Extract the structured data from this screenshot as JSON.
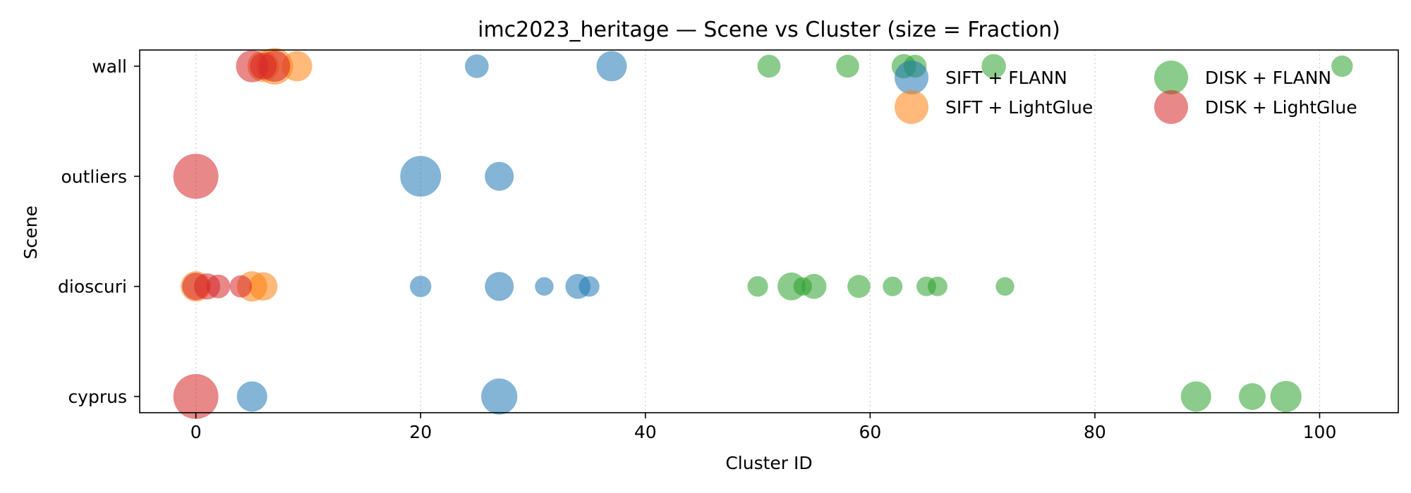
{
  "chart_data": {
    "type": "scatter",
    "title": "imc2023_heritage — Scene vs Cluster (size = Fraction)",
    "xlabel": "Cluster ID",
    "ylabel": "Scene",
    "xlim": [
      -5,
      107
    ],
    "x_ticks": [
      0,
      20,
      40,
      60,
      80,
      100
    ],
    "y_categories": [
      "cyprus",
      "dioscuri",
      "outliers",
      "wall"
    ],
    "grid": "vertical dotted",
    "legend_placement": "top-right",
    "series": [
      {
        "name": "SIFT + FLANN",
        "color": "#1f77b4",
        "points": [
          {
            "x": 25,
            "y": "wall",
            "size": 0.1
          },
          {
            "x": 37,
            "y": "wall",
            "size": 0.22
          },
          {
            "x": 20,
            "y": "outliers",
            "size": 0.5
          },
          {
            "x": 27,
            "y": "outliers",
            "size": 0.19
          },
          {
            "x": 20,
            "y": "dioscuri",
            "size": 0.07
          },
          {
            "x": 27,
            "y": "dioscuri",
            "size": 0.19
          },
          {
            "x": 31,
            "y": "dioscuri",
            "size": 0.04
          },
          {
            "x": 34,
            "y": "dioscuri",
            "size": 0.12
          },
          {
            "x": 35,
            "y": "dioscuri",
            "size": 0.06
          },
          {
            "x": 5,
            "y": "cyprus",
            "size": 0.22
          },
          {
            "x": 27,
            "y": "cyprus",
            "size": 0.36
          }
        ]
      },
      {
        "name": "SIFT + LightGlue",
        "color": "#ff7f0e",
        "points": [
          {
            "x": 6,
            "y": "wall",
            "size": 0.25
          },
          {
            "x": 7,
            "y": "wall",
            "size": 0.38
          },
          {
            "x": 9,
            "y": "wall",
            "size": 0.22
          },
          {
            "x": 0,
            "y": "dioscuri",
            "size": 0.22
          },
          {
            "x": 5,
            "y": "dioscuri",
            "size": 0.22
          },
          {
            "x": 6,
            "y": "dioscuri",
            "size": 0.18
          }
        ]
      },
      {
        "name": "DISK + FLANN",
        "color": "#2ca02c",
        "points": [
          {
            "x": 51,
            "y": "wall",
            "size": 0.09
          },
          {
            "x": 58,
            "y": "wall",
            "size": 0.09
          },
          {
            "x": 63,
            "y": "wall",
            "size": 0.11
          },
          {
            "x": 64,
            "y": "wall",
            "size": 0.09
          },
          {
            "x": 71,
            "y": "wall",
            "size": 0.11
          },
          {
            "x": 102,
            "y": "wall",
            "size": 0.07
          },
          {
            "x": 50,
            "y": "dioscuri",
            "size": 0.06
          },
          {
            "x": 53,
            "y": "dioscuri",
            "size": 0.17
          },
          {
            "x": 54,
            "y": "dioscuri",
            "size": 0.04
          },
          {
            "x": 55,
            "y": "dioscuri",
            "size": 0.12
          },
          {
            "x": 59,
            "y": "dioscuri",
            "size": 0.09
          },
          {
            "x": 62,
            "y": "dioscuri",
            "size": 0.05
          },
          {
            "x": 65,
            "y": "dioscuri",
            "size": 0.05
          },
          {
            "x": 66,
            "y": "dioscuri",
            "size": 0.05
          },
          {
            "x": 72,
            "y": "dioscuri",
            "size": 0.04
          },
          {
            "x": 89,
            "y": "cyprus",
            "size": 0.22
          },
          {
            "x": 94,
            "y": "cyprus",
            "size": 0.15
          },
          {
            "x": 97,
            "y": "cyprus",
            "size": 0.24
          }
        ]
      },
      {
        "name": "DISK + LightGlue",
        "color": "#d62728",
        "points": [
          {
            "x": 5,
            "y": "wall",
            "size": 0.26
          },
          {
            "x": 6,
            "y": "wall",
            "size": 0.15
          },
          {
            "x": 7,
            "y": "wall",
            "size": 0.24
          },
          {
            "x": 0,
            "y": "outliers",
            "size": 0.65
          },
          {
            "x": 0,
            "y": "dioscuri",
            "size": 0.16
          },
          {
            "x": 1,
            "y": "dioscuri",
            "size": 0.14
          },
          {
            "x": 2,
            "y": "dioscuri",
            "size": 0.1
          },
          {
            "x": 4,
            "y": "dioscuri",
            "size": 0.08
          },
          {
            "x": 0,
            "y": "cyprus",
            "size": 0.65
          }
        ]
      }
    ]
  }
}
